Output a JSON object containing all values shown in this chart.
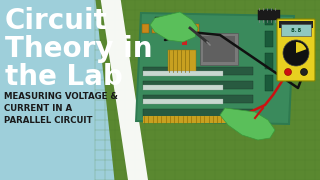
{
  "bg_color": "#9ecfda",
  "title_line1": "Circuit",
  "title_line2": "Theory in",
  "title_line3": "the Lab",
  "subtitle_line1": "MEASURING VOLTAGE &",
  "subtitle_line2": "CURRENT IN A",
  "subtitle_line3": "PARALLEL CIRCUIT",
  "title_color": "#ffffff",
  "subtitle_color": "#1a1a1a",
  "mat_dark": "#5a8830",
  "mat_mid": "#6a9e38",
  "mat_light": "#7ab840",
  "pcb_green": "#3a7a50",
  "pcb_light": "#4a9060",
  "glove_color": "#5abf5a",
  "glove_edge": "#3a9a3a",
  "mm_yellow": "#e8d020",
  "mm_black": "#1a1a1a",
  "mm_screen_bg": "#b8e0d8",
  "wire_black": "#111111",
  "wire_red": "#cc1111"
}
